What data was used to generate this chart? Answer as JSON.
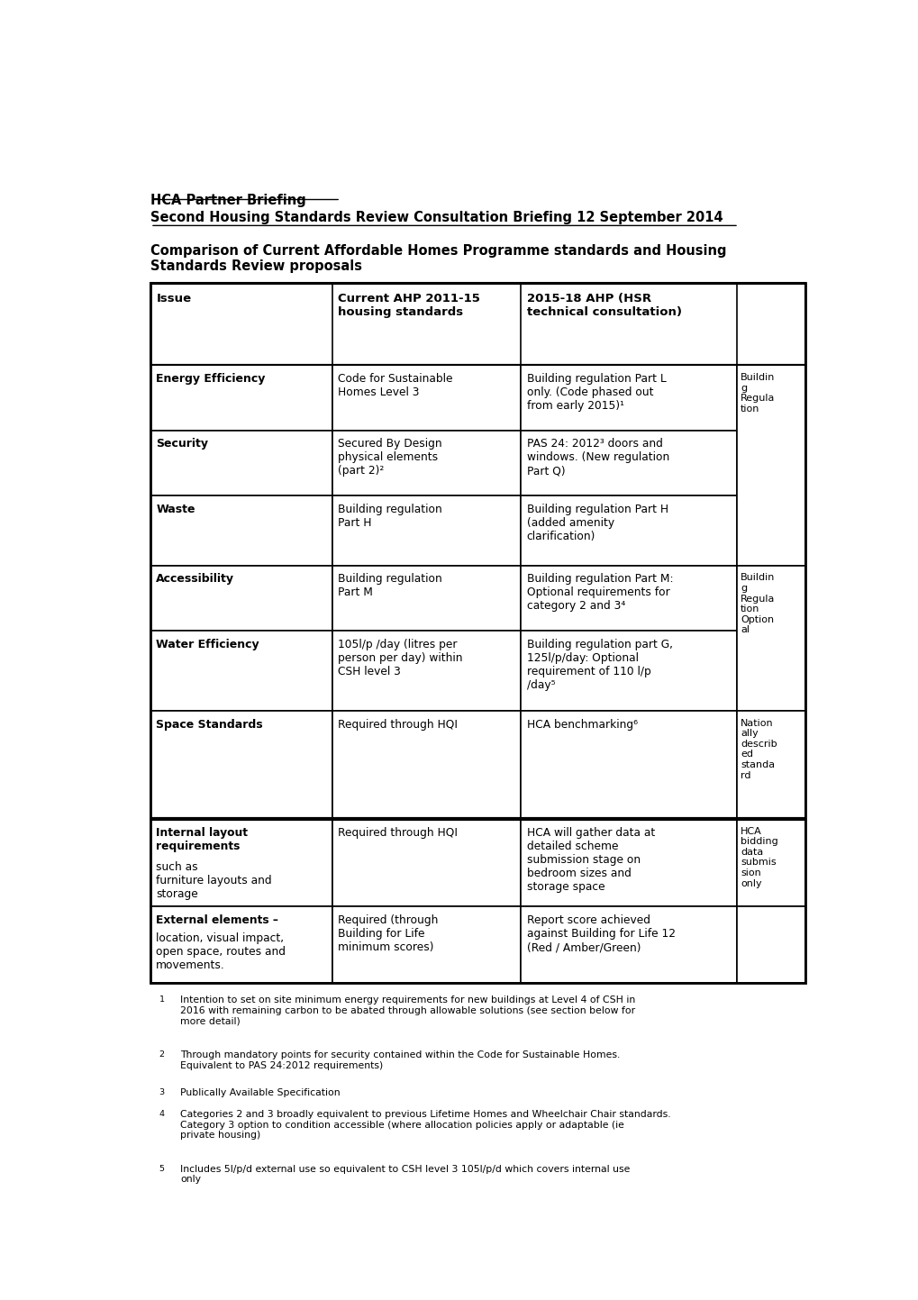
{
  "title_line1": "HCA Partner Briefing",
  "title_line2": "Second Housing Standards Review Consultation Briefing 12 September 2014",
  "subtitle": "Comparison of Current Affordable Homes Programme standards and Housing\nStandards Review proposals",
  "bg_color": "#ffffff",
  "footnotes": [
    "Intention to set on site minimum energy requirements for new buildings at Level 4 of CSH in\n2016 with remaining carbon to be abated through allowable solutions (see section below for\nmore detail)",
    "Through mandatory points for security contained within the Code for Sustainable Homes.\nEquivalent to PAS 24:2012 requirements)",
    "Publically Available Specification",
    "Categories 2 and 3 broadly equivalent to previous Lifetime Homes and Wheelchair Chair standards.\nCategory 3 option to condition accessible (where allocation policies apply or adaptable (ie\nprivate housing)",
    "Includes 5l/p/d external use so equivalent to CSH level 3 105l/p/d which covers internal use\nonly"
  ]
}
